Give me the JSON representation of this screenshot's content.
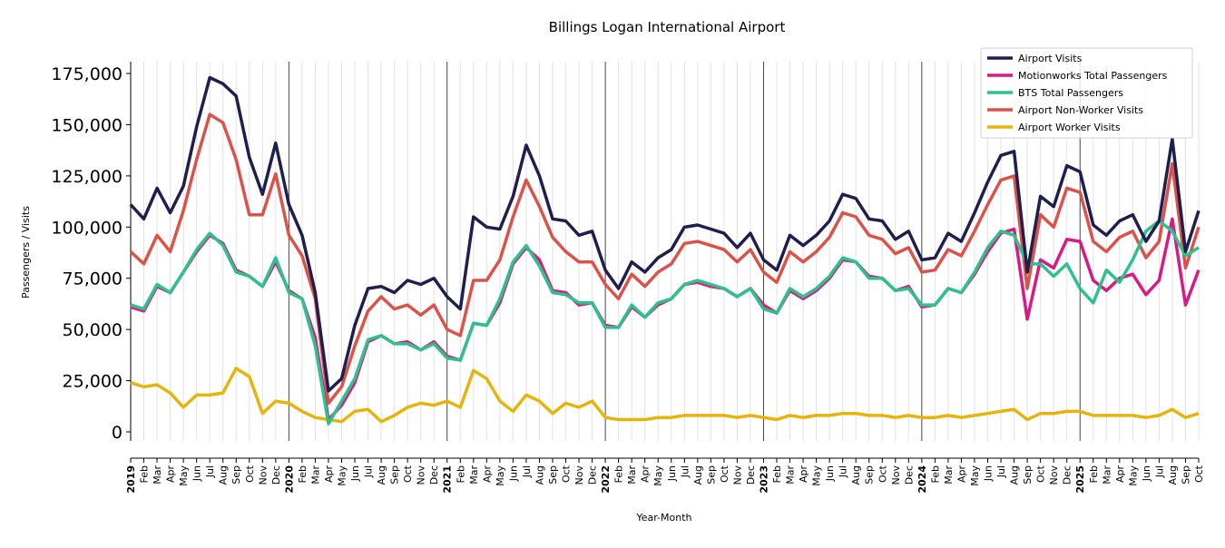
{
  "chart_data": {
    "type": "line",
    "title": "Billings Logan International Airport",
    "xlabel": "Year-Month",
    "ylabel": "Passengers / Visits",
    "ylim": [
      0,
      175000
    ],
    "yticks": [
      0,
      25000,
      50000,
      75000,
      100000,
      125000,
      150000,
      175000
    ],
    "ytick_labels": [
      "0",
      "25,000",
      "50,000",
      "75,000",
      "100,000",
      "125,000",
      "150,000",
      "175,000"
    ],
    "start": "2019-01",
    "end": "2025-10",
    "month_labels": [
      "Jan",
      "Feb",
      "Mar",
      "Apr",
      "May",
      "Jun",
      "Jul",
      "Aug",
      "Sep",
      "Oct",
      "Nov",
      "Dec"
    ],
    "years": [
      "2019",
      "2020",
      "2021",
      "2022",
      "2023",
      "2024",
      "2025"
    ],
    "grid": "vertical, monthly; darker lines at each January",
    "legend_position": "top-right",
    "series": [
      {
        "name": "Airport Visits",
        "color": "#1f1f4f",
        "values": [
          111000,
          104000,
          119000,
          107000,
          120000,
          149000,
          173000,
          170000,
          164000,
          134000,
          116000,
          141000,
          111000,
          96000,
          68000,
          20000,
          26000,
          52000,
          70000,
          71000,
          68000,
          74000,
          72000,
          75000,
          66000,
          60000,
          105000,
          100000,
          99000,
          115000,
          140000,
          125000,
          104000,
          103000,
          96000,
          98000,
          79000,
          70000,
          83000,
          78000,
          85000,
          89000,
          100000,
          101000,
          99000,
          97000,
          90000,
          97000,
          84000,
          79000,
          96000,
          91000,
          96000,
          103000,
          116000,
          114000,
          104000,
          103000,
          94000,
          98000,
          84000,
          85000,
          97000,
          93000,
          107000,
          122000,
          135000,
          137000,
          78000,
          115000,
          110000,
          130000,
          127000,
          101000,
          96000,
          103000,
          106000,
          93000,
          103000,
          143000,
          88000,
          108000
        ]
      },
      {
        "name": "Motionworks Total Passengers",
        "color": "#d81b84",
        "values": [
          61000,
          59000,
          71000,
          68000,
          78000,
          88000,
          96000,
          92000,
          79000,
          76000,
          71000,
          83000,
          69000,
          65000,
          46000,
          6000,
          13000,
          24000,
          44000,
          47000,
          43000,
          44000,
          40000,
          44000,
          37000,
          35000,
          53000,
          52000,
          63000,
          82000,
          90000,
          84000,
          69000,
          68000,
          62000,
          63000,
          52000,
          51000,
          61000,
          56000,
          62000,
          65000,
          72000,
          73000,
          71000,
          70000,
          66000,
          70000,
          62000,
          58000,
          69000,
          65000,
          69000,
          75000,
          84000,
          83000,
          76000,
          75000,
          69000,
          71000,
          61000,
          62000,
          70000,
          68000,
          77000,
          88000,
          97000,
          99000,
          55000,
          84000,
          80000,
          94000,
          93000,
          74000,
          69000,
          75000,
          77000,
          67000,
          74000,
          104000,
          62000,
          79000
        ]
      },
      {
        "name": "BTS Total Passengers",
        "color": "#2bc28e",
        "values": [
          62000,
          60000,
          72000,
          68000,
          78000,
          89000,
          97000,
          91000,
          78000,
          76000,
          71000,
          85000,
          68000,
          65000,
          42000,
          4000,
          15000,
          26000,
          45000,
          47000,
          43000,
          43000,
          40000,
          43000,
          36000,
          35000,
          53000,
          52000,
          65000,
          83000,
          91000,
          81000,
          68000,
          67000,
          63000,
          63000,
          51000,
          51000,
          62000,
          56000,
          63000,
          65000,
          72000,
          74000,
          72000,
          70000,
          66000,
          70000,
          60000,
          58000,
          70000,
          66000,
          70000,
          76000,
          85000,
          83000,
          75000,
          75000,
          69000,
          70000,
          62000,
          62000,
          70000,
          68000,
          78000,
          90000,
          98000,
          96000,
          82000,
          82000,
          76000,
          82000,
          70000,
          63000,
          79000,
          73000,
          84000,
          98000,
          103000,
          98000,
          86000,
          90000
        ]
      },
      {
        "name": "Airport Non-Worker Visits",
        "color": "#dc5249",
        "values": [
          88000,
          82000,
          96000,
          88000,
          108000,
          133000,
          155000,
          151000,
          133000,
          106000,
          106000,
          126000,
          96000,
          86000,
          65000,
          14000,
          22000,
          42000,
          59000,
          66000,
          60000,
          62000,
          57000,
          62000,
          50000,
          47000,
          74000,
          74000,
          84000,
          105000,
          123000,
          110000,
          95000,
          88000,
          83000,
          83000,
          72000,
          65000,
          77000,
          71000,
          78000,
          82000,
          92000,
          93000,
          91000,
          89000,
          83000,
          89000,
          78000,
          73000,
          88000,
          83000,
          88000,
          95000,
          107000,
          105000,
          96000,
          94000,
          87000,
          90000,
          78000,
          79000,
          89000,
          86000,
          98000,
          111000,
          123000,
          125000,
          70000,
          106000,
          100000,
          119000,
          117000,
          93000,
          88000,
          95000,
          98000,
          85000,
          93000,
          131000,
          80000,
          100000
        ]
      },
      {
        "name": "Airport Worker Visits",
        "color": "#e6b40b",
        "values": [
          24000,
          22000,
          23000,
          19000,
          12000,
          18000,
          18000,
          19000,
          31000,
          27000,
          9000,
          15000,
          14000,
          10000,
          7000,
          6000,
          5000,
          10000,
          11000,
          5000,
          8000,
          12000,
          14000,
          13000,
          15000,
          12000,
          30000,
          26000,
          15000,
          10000,
          18000,
          15000,
          9000,
          14000,
          12000,
          15000,
          7000,
          6000,
          6000,
          6000,
          7000,
          7000,
          8000,
          8000,
          8000,
          8000,
          7000,
          8000,
          7000,
          6000,
          8000,
          7000,
          8000,
          8000,
          9000,
          9000,
          8000,
          8000,
          7000,
          8000,
          7000,
          7000,
          8000,
          7000,
          8000,
          9000,
          10000,
          11000,
          6000,
          9000,
          9000,
          10000,
          10000,
          8000,
          8000,
          8000,
          8000,
          7000,
          8000,
          11000,
          7000,
          9000
        ]
      }
    ]
  }
}
